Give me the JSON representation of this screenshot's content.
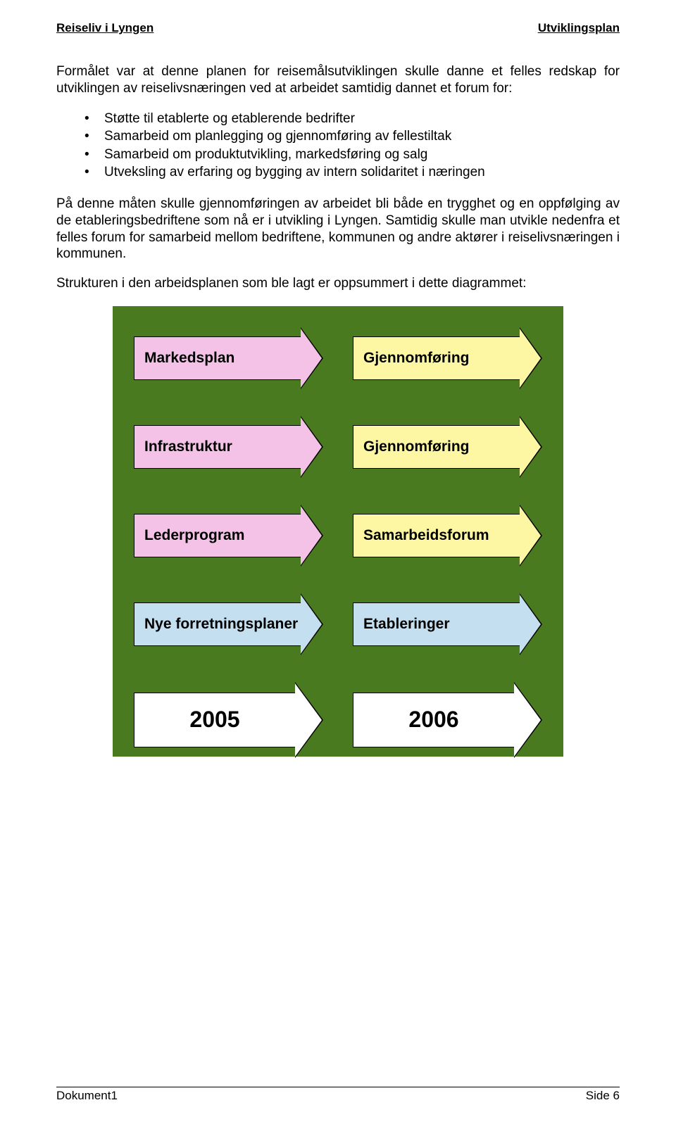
{
  "header": {
    "left": "Reiseliv i Lyngen",
    "right": "Utviklingsplan"
  },
  "para1": "Formålet var at denne planen for reisemålsutviklingen skulle danne et felles redskap for utviklingen av reiselivsnæringen ved at arbeidet samtidig dannet et forum for:",
  "bullets": [
    "Støtte til etablerte og etablerende bedrifter",
    "Samarbeid om planlegging og gjennomføring av fellestiltak",
    "Samarbeid om produktutvikling, markedsføring og salg",
    "Utveksling av erfaring og bygging av intern solidaritet i næringen"
  ],
  "para2": "På denne måten skulle gjennomføringen av arbeidet bli både en trygghet og en oppfølging av de etableringsbedriftene som nå er i utvikling i Lyngen. Samtidig skulle man utvikle nedenfra et felles forum for samarbeid mellom bedriftene, kommunen og andre aktører i reiselivsnæringen i kommunen.",
  "para3": "Strukturen i den arbeidsplanen som ble lagt er oppsummert i dette diagrammet:",
  "diagram": {
    "background": "#4a7a1f",
    "rows": [
      {
        "left": {
          "label": "Markedsplan",
          "fill": "#f4c2e6"
        },
        "right": {
          "label": "Gjennomføring",
          "fill": "#fdf6a3"
        }
      },
      {
        "left": {
          "label": "Infrastruktur",
          "fill": "#f4c2e6"
        },
        "right": {
          "label": "Gjennomføring",
          "fill": "#fdf6a3"
        }
      },
      {
        "left": {
          "label": "Lederprogram",
          "fill": "#f4c2e6"
        },
        "right": {
          "label": "Samarbeidsforum",
          "fill": "#fdf6a3"
        }
      },
      {
        "left": {
          "label": "Nye forretningsplaner",
          "fill": "#c4dff0"
        },
        "right": {
          "label": "Etableringer",
          "fill": "#c4dff0"
        }
      }
    ],
    "years": {
      "left": {
        "label": "2005",
        "fill": "#ffffff"
      },
      "right": {
        "label": "2006",
        "fill": "#ffffff"
      }
    },
    "arrow": {
      "body_h": 62,
      "head_bt": 44,
      "head_bl": 32,
      "big_body_h": 78,
      "big_head_bt": 54,
      "big_head_bl": 40,
      "border": "#000000"
    }
  },
  "footer": {
    "left": "Dokument1",
    "right": "Side 6"
  }
}
